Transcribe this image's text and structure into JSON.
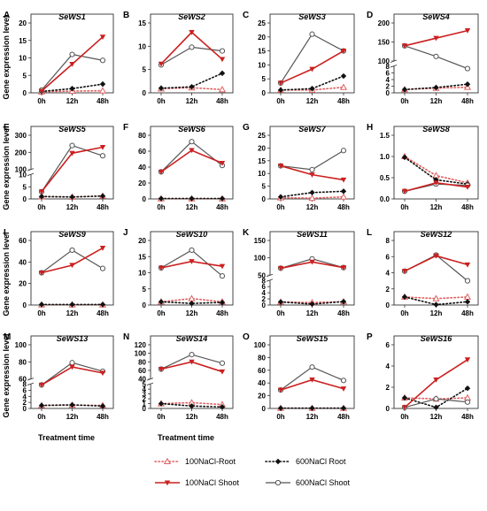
{
  "colors": {
    "root100": "#e06060",
    "shoot100": "#cc1f1f",
    "root600": "#111111",
    "shoot600": "#555555"
  },
  "legend": [
    {
      "key": "r100",
      "label": "100NaCl-Root",
      "style": "dotted",
      "marker": "triangle-up-open"
    },
    {
      "key": "r600",
      "label": "600NaCl Root",
      "style": "dotted",
      "marker": "diamond"
    },
    {
      "key": "s100",
      "label": "100NaCl Shoot",
      "style": "solid",
      "marker": "triangle-down"
    },
    {
      "key": "s600",
      "label": "600NaCl Shoot",
      "style": "solid",
      "marker": "circle-open"
    }
  ],
  "y_axis_label": "Gene expression level",
  "x_axis_label": "Treatment time",
  "chart_data": [
    {
      "letter": "A",
      "title": "SeWS1",
      "type": "line",
      "categories": [
        "0h",
        "12h",
        "48h"
      ],
      "y_ticks": [
        "0",
        "5",
        "10",
        "15",
        "20"
      ],
      "series": {
        "r100": [
          0.3,
          0.5,
          0.6
        ],
        "r600": [
          0.4,
          1.2,
          2.5
        ],
        "s100": [
          0.5,
          8.2,
          16
        ],
        "s600": [
          0.8,
          11,
          9.3
        ]
      }
    },
    {
      "letter": "B",
      "title": "SeWS2",
      "type": "line",
      "categories": [
        "0h",
        "12h",
        "48h"
      ],
      "y_ticks": [
        "0",
        "5",
        "10",
        "15"
      ],
      "series": {
        "r100": [
          0.9,
          1.1,
          0.7
        ],
        "r600": [
          1.0,
          1.3,
          4.2
        ],
        "s100": [
          6.2,
          13,
          7.2
        ],
        "s600": [
          6.0,
          9.8,
          9.0
        ]
      }
    },
    {
      "letter": "C",
      "title": "SeWS3",
      "type": "line",
      "categories": [
        "0h",
        "12h",
        "48h"
      ],
      "y_ticks": [
        "0",
        "5",
        "10",
        "15",
        "20",
        "25"
      ],
      "series": {
        "r100": [
          1,
          1,
          2
        ],
        "r600": [
          1,
          1.5,
          6
        ],
        "s100": [
          3.5,
          8.5,
          15
        ],
        "s600": [
          3.5,
          21,
          15
        ]
      }
    },
    {
      "letter": "D",
      "title": "SeWS4",
      "type": "line",
      "categories": [
        "0h",
        "12h",
        "48h"
      ],
      "broken": true,
      "y_ticks_low": [
        "0",
        "2",
        "4",
        "6",
        "8"
      ],
      "y_ticks_high": [
        "100",
        "150",
        "200"
      ],
      "series": {
        "r100": [
          1,
          1.4,
          1.7
        ],
        "r600": [
          1,
          1.6,
          2.6
        ],
        "s100": [
          140,
          160,
          180
        ],
        "s600": [
          140,
          112,
          80
        ]
      }
    },
    {
      "letter": "E",
      "title": "SeWS5",
      "type": "line",
      "categories": [
        "0h",
        "12h",
        "48h"
      ],
      "broken": true,
      "y_ticks_low": [
        "0",
        "5",
        "10"
      ],
      "y_ticks_high": [
        "100",
        "200",
        "300"
      ],
      "series": {
        "r100": [
          1,
          0.8,
          1.2
        ],
        "r600": [
          1,
          0.8,
          1.2
        ],
        "s100": [
          3,
          195,
          230
        ],
        "s600": [
          3,
          240,
          180
        ]
      }
    },
    {
      "letter": "F",
      "title": "SeWS6",
      "type": "line",
      "categories": [
        "0h",
        "12h",
        "48h"
      ],
      "y_ticks": [
        "0",
        "20",
        "40",
        "60",
        "80"
      ],
      "series": {
        "r100": [
          0.3,
          0.3,
          0.3
        ],
        "r600": [
          0.5,
          0.5,
          0.5
        ],
        "s100": [
          34,
          61,
          45
        ],
        "s600": [
          34,
          72,
          42
        ]
      }
    },
    {
      "letter": "G",
      "title": "SeWS7",
      "type": "line",
      "categories": [
        "0h",
        "12h",
        "48h"
      ],
      "y_ticks": [
        "0",
        "5",
        "10",
        "15",
        "20",
        "25"
      ],
      "series": {
        "r100": [
          0.5,
          0.3,
          0.8
        ],
        "r600": [
          0.8,
          2.5,
          3
        ],
        "s100": [
          13,
          9.5,
          7.5
        ],
        "s600": [
          13,
          11.5,
          19
        ]
      }
    },
    {
      "letter": "H",
      "title": "SeWS8",
      "type": "line",
      "categories": [
        "0h",
        "12h",
        "48h"
      ],
      "y_ticks": [
        "0.0",
        "0.5",
        "1.0",
        "1.5"
      ],
      "series": {
        "r100": [
          1,
          0.55,
          0.38
        ],
        "r600": [
          0.98,
          0.45,
          0.35
        ],
        "s100": [
          0.18,
          0.38,
          0.28
        ],
        "s600": [
          0.18,
          0.35,
          0.32
        ]
      }
    },
    {
      "letter": "I",
      "title": "SeWS9",
      "type": "line",
      "categories": [
        "0h",
        "12h",
        "48h"
      ],
      "y_ticks": [
        "0",
        "20",
        "40",
        "60"
      ],
      "series": {
        "r100": [
          0.3,
          0.3,
          0.3
        ],
        "r600": [
          0.5,
          0.5,
          0.5
        ],
        "s100": [
          30,
          37,
          53
        ],
        "s600": [
          30,
          51,
          34
        ]
      }
    },
    {
      "letter": "J",
      "title": "SeWS10",
      "type": "line",
      "categories": [
        "0h",
        "12h",
        "48h"
      ],
      "y_ticks": [
        "0",
        "5",
        "10",
        "15",
        "20"
      ],
      "series": {
        "r100": [
          1,
          2,
          1
        ],
        "r600": [
          1,
          0.5,
          0.8
        ],
        "s100": [
          11.5,
          13.5,
          12
        ],
        "s600": [
          11.5,
          17,
          9
        ]
      }
    },
    {
      "letter": "K",
      "title": "SeWS11",
      "type": "line",
      "categories": [
        "0h",
        "12h",
        "48h"
      ],
      "broken": true,
      "y_ticks_low": [
        "0",
        "2",
        "4",
        "6",
        "8"
      ],
      "y_ticks_high": [
        "50",
        "100",
        "150"
      ],
      "series": {
        "r100": [
          1,
          0.8,
          1.1
        ],
        "r600": [
          1,
          0.3,
          1.1
        ],
        "s100": [
          70,
          88,
          72
        ],
        "s600": [
          70,
          97,
          72
        ]
      }
    },
    {
      "letter": "L",
      "title": "SeWS12",
      "type": "line",
      "categories": [
        "0h",
        "12h",
        "48h"
      ],
      "y_ticks": [
        "0",
        "2",
        "4",
        "6",
        "8"
      ],
      "series": {
        "r100": [
          1,
          0.8,
          1
        ],
        "r600": [
          1,
          0.05,
          0.4
        ],
        "s100": [
          4.2,
          6.1,
          5
        ],
        "s600": [
          4.2,
          6.2,
          3
        ]
      }
    },
    {
      "letter": "M",
      "title": "SeWS13",
      "type": "line",
      "categories": [
        "0h",
        "12h",
        "48h"
      ],
      "broken": true,
      "y_ticks_low": [
        "0",
        "2",
        "4",
        "6",
        "8"
      ],
      "y_ticks_high": [
        "60",
        "80",
        "100"
      ],
      "series": {
        "r100": [
          1,
          1.1,
          1
        ],
        "r600": [
          1,
          1.2,
          0.8
        ],
        "s100": [
          53,
          74,
          67
        ],
        "s600": [
          53,
          79,
          69
        ]
      }
    },
    {
      "letter": "N",
      "title": "SeWS14",
      "type": "line",
      "categories": [
        "0h",
        "12h",
        "48h"
      ],
      "broken": true,
      "y_ticks_low": [
        "0",
        "1",
        "2",
        "3",
        "4",
        "5"
      ],
      "y_ticks_high": [
        "40",
        "60",
        "80",
        "100",
        "120"
      ],
      "series": {
        "r100": [
          1,
          1.2,
          0.8
        ],
        "r600": [
          1,
          0.5,
          0.3
        ],
        "s100": [
          63,
          80,
          57
        ],
        "s600": [
          63,
          97,
          77
        ]
      }
    },
    {
      "letter": "O",
      "title": "SeWS15",
      "type": "line",
      "categories": [
        "0h",
        "12h",
        "48h"
      ],
      "y_ticks": [
        "0",
        "20",
        "40",
        "60",
        "80",
        "100"
      ],
      "series": {
        "r100": [
          0.5,
          0.5,
          0.5
        ],
        "r600": [
          0.5,
          0.5,
          0.5
        ],
        "s100": [
          29,
          45,
          31
        ],
        "s600": [
          29,
          65,
          44
        ]
      }
    },
    {
      "letter": "P",
      "title": "SeWS16",
      "type": "line",
      "categories": [
        "0h",
        "12h",
        "48h"
      ],
      "y_ticks": [
        "0",
        "2",
        "4",
        "6"
      ],
      "series": {
        "r100": [
          1,
          0.9,
          1
        ],
        "r600": [
          1,
          0.1,
          1.9
        ],
        "s100": [
          0.1,
          2.7,
          4.6
        ],
        "s600": [
          0.1,
          0.9,
          0.6
        ]
      }
    }
  ]
}
